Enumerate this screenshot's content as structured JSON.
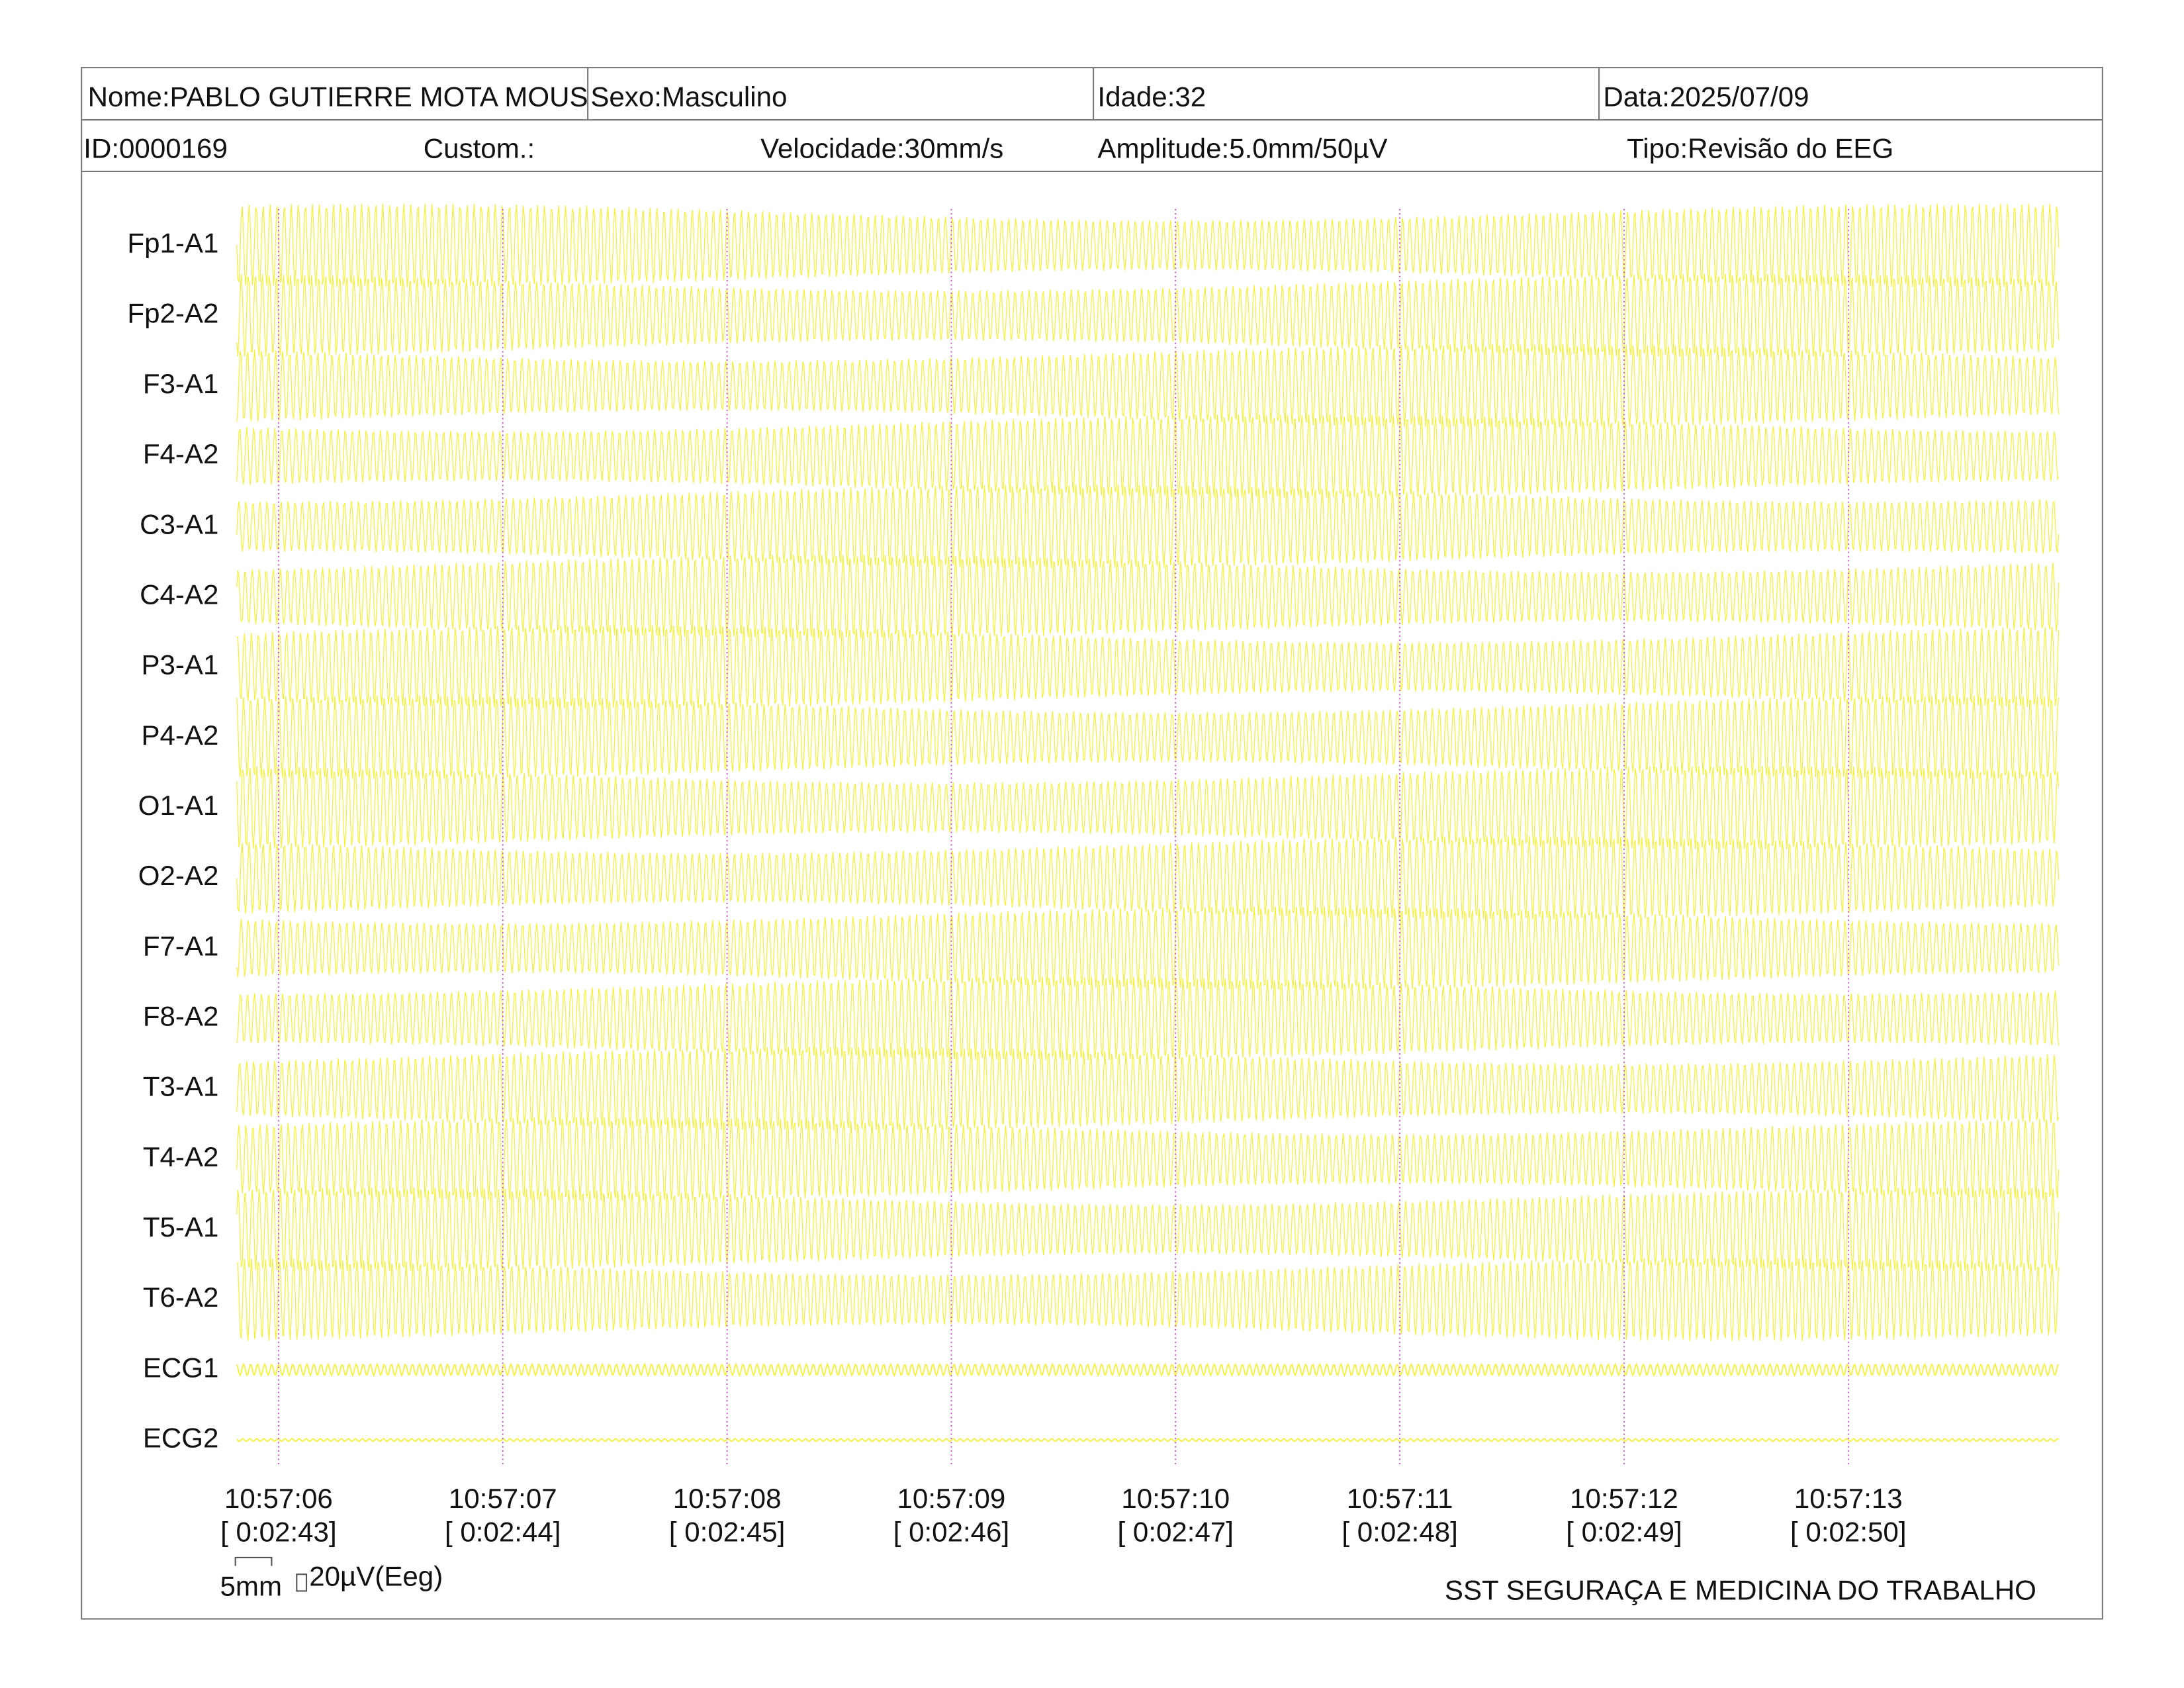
{
  "header": {
    "row1": [
      "Nome:PABLO GUTIERRE MOTA MOUS",
      "Sexo:Masculino",
      "Idade:32",
      "Data:2025/07/09"
    ],
    "row2": [
      "ID:0000169",
      "Custom.:",
      "Velocidade:30mm/s",
      "Amplitude:5.0mm/50µV",
      "Tipo:Revisão do EEG"
    ]
  },
  "channels": [
    "Fp1-A1",
    "Fp2-A2",
    "F3-A1",
    "F4-A2",
    "C3-A1",
    "C4-A2",
    "P3-A1",
    "P4-A2",
    "O1-A1",
    "O2-A2",
    "F7-A1",
    "F8-A2",
    "T3-A1",
    "T4-A2",
    "T5-A1",
    "T6-A2",
    "ECG1",
    "ECG2"
  ],
  "timeline": [
    {
      "time": "10:57:06",
      "elapsed": "[ 0:02:43]"
    },
    {
      "time": "10:57:07",
      "elapsed": "[ 0:02:44]"
    },
    {
      "time": "10:57:08",
      "elapsed": "[ 0:02:45]"
    },
    {
      "time": "10:57:09",
      "elapsed": "[ 0:02:46]"
    },
    {
      "time": "10:57:10",
      "elapsed": "[ 0:02:47]"
    },
    {
      "time": "10:57:11",
      "elapsed": "[ 0:02:48]"
    },
    {
      "time": "10:57:12",
      "elapsed": "[ 0:02:49]"
    },
    {
      "time": "10:57:13",
      "elapsed": "[ 0:02:50]"
    }
  ],
  "scale": {
    "length": "5mm",
    "amplitude": "20µV(Eeg)"
  },
  "footer": "SST SEGURAÇA E MEDICINA DO TRABALHO"
}
